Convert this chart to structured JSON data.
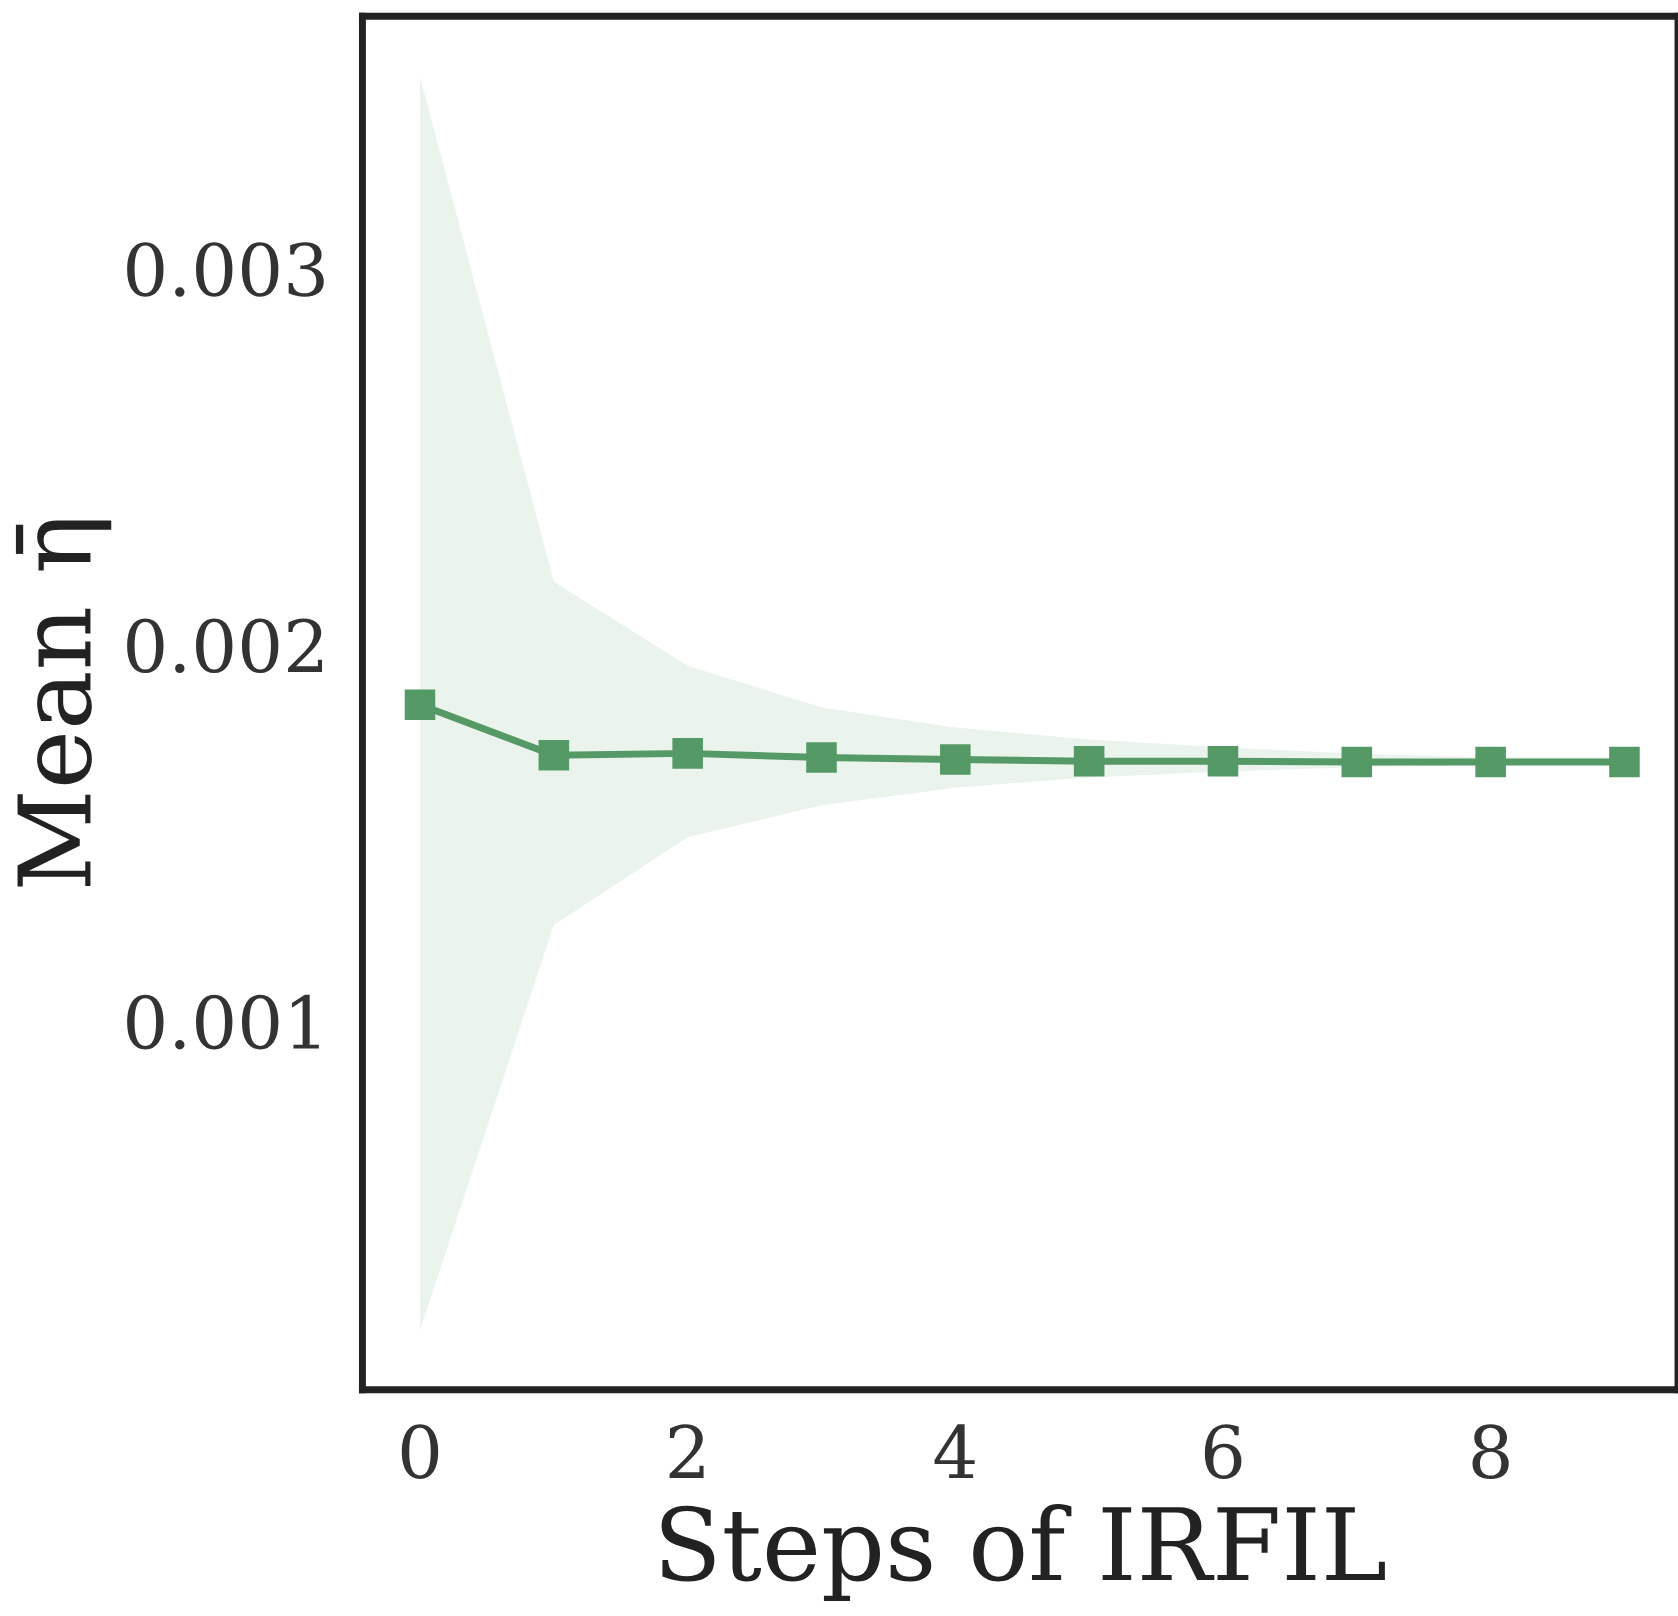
{
  "chart_data": {
    "type": "line",
    "xlabel": "Steps of IRFIL",
    "ylabel": "Mean η̄",
    "x": [
      0,
      1,
      2,
      3,
      4,
      5,
      6,
      7,
      8,
      9
    ],
    "series": [
      {
        "color": "#559966",
        "values": [
          0.00184,
          0.001706,
          0.001711,
          0.0017,
          0.001695,
          0.00169,
          0.00169,
          0.001688,
          0.001688,
          0.001688
        ],
        "lower": [
          0.000178,
          0.001255,
          0.001488,
          0.001573,
          0.00162,
          0.001647,
          0.001663,
          0.001674,
          0.00168,
          0.00168
        ],
        "upper": [
          0.003509,
          0.002167,
          0.001944,
          0.001833,
          0.00178,
          0.001748,
          0.001727,
          0.00171,
          0.0017,
          0.0017
        ]
      }
    ],
    "marker": "square",
    "line_style": "solid",
    "grid": false,
    "legend": false,
    "xlim": [
      -0.43,
      9.4
    ],
    "ylim": [
      2e-05,
      0.00367
    ],
    "xticks": [
      0,
      2,
      4,
      6,
      8
    ],
    "yticks": [
      0.001,
      0.002,
      0.003
    ]
  }
}
